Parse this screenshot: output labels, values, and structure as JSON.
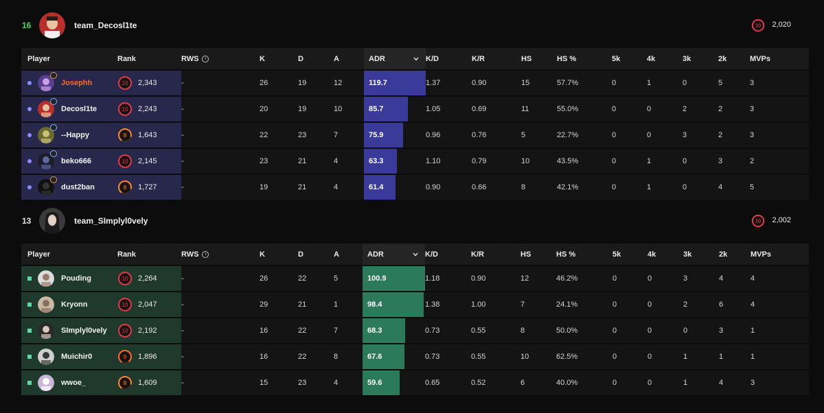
{
  "columns": [
    "Player",
    "Rank",
    "RWS",
    "K",
    "D",
    "A",
    "ADR",
    "K/D",
    "K/R",
    "HS",
    "HS %",
    "5k",
    "4k",
    "3k",
    "2k",
    "MVPs"
  ],
  "colors": {
    "win_score": "#4cd964",
    "team1_accent": "#8d8dff",
    "team2_accent": "#5fd6ac",
    "player_highlight": "#ff6a2b"
  },
  "teams": [
    {
      "score": "16",
      "name": "team_Decosl1te",
      "elo": "2,020",
      "elo_level": "10",
      "players": [
        {
          "name": "Josephh",
          "level": "10",
          "rank": "2,343",
          "rws": "-",
          "k": "26",
          "d": "19",
          "a": "12",
          "adr": "119.7",
          "kd": "1.37",
          "kr": "0.90",
          "hs": "15",
          "hsp": "57.7%",
          "k5": "0",
          "k4": "1",
          "k3": "0",
          "k2": "5",
          "mvps": "3"
        },
        {
          "name": "Decosl1te",
          "level": "10",
          "rank": "2,243",
          "rws": "-",
          "k": "20",
          "d": "19",
          "a": "10",
          "adr": "85.7",
          "kd": "1.05",
          "kr": "0.69",
          "hs": "11",
          "hsp": "55.0%",
          "k5": "0",
          "k4": "0",
          "k3": "2",
          "k2": "2",
          "mvps": "3"
        },
        {
          "name": "--Happy",
          "level": "8",
          "rank": "1,643",
          "rws": "-",
          "k": "22",
          "d": "23",
          "a": "7",
          "adr": "75.9",
          "kd": "0.96",
          "kr": "0.76",
          "hs": "5",
          "hsp": "22.7%",
          "k5": "0",
          "k4": "0",
          "k3": "3",
          "k2": "2",
          "mvps": "3"
        },
        {
          "name": "beko666",
          "level": "10",
          "rank": "2,145",
          "rws": "-",
          "k": "23",
          "d": "21",
          "a": "4",
          "adr": "63.3",
          "kd": "1.10",
          "kr": "0.79",
          "hs": "10",
          "hsp": "43.5%",
          "k5": "0",
          "k4": "1",
          "k3": "0",
          "k2": "3",
          "mvps": "2"
        },
        {
          "name": "dust2ban",
          "level": "8",
          "rank": "1,727",
          "rws": "-",
          "k": "19",
          "d": "21",
          "a": "4",
          "adr": "61.4",
          "kd": "0.90",
          "kr": "0.66",
          "hs": "8",
          "hsp": "42.1%",
          "k5": "0",
          "k4": "1",
          "k3": "0",
          "k2": "4",
          "mvps": "5"
        }
      ]
    },
    {
      "score": "13",
      "name": "team_SImplyl0vely",
      "elo": "2,002",
      "elo_level": "10",
      "players": [
        {
          "name": "Pouding",
          "level": "10",
          "rank": "2,264",
          "rws": "-",
          "k": "26",
          "d": "22",
          "a": "5",
          "adr": "100.9",
          "kd": "1.18",
          "kr": "0.90",
          "hs": "12",
          "hsp": "46.2%",
          "k5": "0",
          "k4": "0",
          "k3": "3",
          "k2": "4",
          "mvps": "4"
        },
        {
          "name": "Kryonn",
          "level": "10",
          "rank": "2,047",
          "rws": "-",
          "k": "29",
          "d": "21",
          "a": "1",
          "adr": "98.4",
          "kd": "1.38",
          "kr": "1.00",
          "hs": "7",
          "hsp": "24.1%",
          "k5": "0",
          "k4": "0",
          "k3": "2",
          "k2": "6",
          "mvps": "4"
        },
        {
          "name": "SImplyl0vely",
          "level": "10",
          "rank": "2,192",
          "rws": "-",
          "k": "16",
          "d": "22",
          "a": "7",
          "adr": "68.3",
          "kd": "0.73",
          "kr": "0.55",
          "hs": "8",
          "hsp": "50.0%",
          "k5": "0",
          "k4": "0",
          "k3": "0",
          "k2": "3",
          "mvps": "1"
        },
        {
          "name": "Muichir0",
          "level": "9",
          "rank": "1,896",
          "rws": "-",
          "k": "16",
          "d": "22",
          "a": "8",
          "adr": "67.6",
          "kd": "0.73",
          "kr": "0.55",
          "hs": "10",
          "hsp": "62.5%",
          "k5": "0",
          "k4": "0",
          "k3": "1",
          "k2": "1",
          "mvps": "1"
        },
        {
          "name": "wwoe_",
          "level": "8",
          "rank": "1,609",
          "rws": "-",
          "k": "15",
          "d": "23",
          "a": "4",
          "adr": "59.6",
          "kd": "0.65",
          "kr": "0.52",
          "hs": "6",
          "hsp": "40.0%",
          "k5": "0",
          "k4": "0",
          "k3": "1",
          "k2": "4",
          "mvps": "3"
        }
      ]
    }
  ]
}
